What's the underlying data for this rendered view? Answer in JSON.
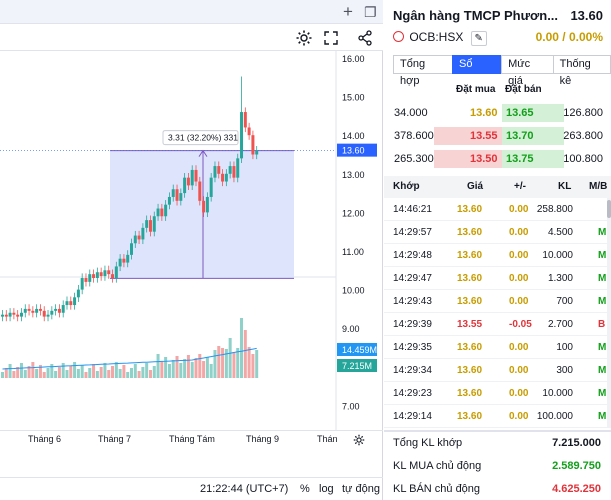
{
  "chart": {
    "price_axis": [
      "16.00",
      "15.00",
      "14.00",
      "13.00",
      "12.00",
      "11.00",
      "10.00",
      "9.00",
      "8.00",
      "7.00"
    ],
    "last_price_tag": "13.60",
    "vol_tag_1": "14.459M",
    "vol_tag_2": "7.215M",
    "measure_label": "3.31 (32.20%) 331",
    "time_labels": [
      "Tháng 6",
      "Tháng 7",
      "Tháng Tám",
      "Tháng 9",
      "Thán"
    ],
    "footer_time": "21:22:44 (UTC+7)",
    "footer_percent": "%",
    "footer_log": "log",
    "footer_auto": "tự động",
    "colors": {
      "up": "#26a69a",
      "down": "#ef5350",
      "range_fill": "#dde4fb",
      "range_border": "#7e57c2",
      "tag": "#2962ff"
    }
  },
  "quote": {
    "name": "Ngân hàng TMCP Phươn...",
    "price": "13.60",
    "symbol": "OCB:HSX",
    "change": "0.00 / 0.00%",
    "tabs": [
      "Tổng hợp",
      "Sổ lệnh",
      "Mức giá",
      "Thống kê"
    ],
    "book_headers": {
      "bid": "Đặt mua",
      "ask": "Đặt bán"
    },
    "book": [
      {
        "bid_vol": "34.000",
        "bid": "13.60",
        "ask": "13.65",
        "ask_vol": "126.800"
      },
      {
        "bid_vol": "378.600",
        "bid": "13.55",
        "ask": "13.70",
        "ask_vol": "263.800"
      },
      {
        "bid_vol": "265.300",
        "bid": "13.50",
        "ask": "13.75",
        "ask_vol": "100.800"
      }
    ],
    "matched_headers": {
      "time": "Khớp",
      "price": "Giá",
      "change": "+/-",
      "vol": "KL",
      "side": "M/B"
    },
    "matched": [
      {
        "time": "14:46:21",
        "price": "13.60",
        "change": "0.00",
        "vol": "258.800",
        "side": ""
      },
      {
        "time": "14:29:57",
        "price": "13.60",
        "change": "0.00",
        "vol": "4.500",
        "side": "M"
      },
      {
        "time": "14:29:48",
        "price": "13.60",
        "change": "0.00",
        "vol": "10.000",
        "side": "M"
      },
      {
        "time": "14:29:47",
        "price": "13.60",
        "change": "0.00",
        "vol": "1.300",
        "side": "M"
      },
      {
        "time": "14:29:43",
        "price": "13.60",
        "change": "0.00",
        "vol": "700",
        "side": "M"
      },
      {
        "time": "14:29:39",
        "price": "13.55",
        "change": "-0.05",
        "vol": "2.700",
        "side": "B"
      },
      {
        "time": "14:29:35",
        "price": "13.60",
        "change": "0.00",
        "vol": "100",
        "side": "M"
      },
      {
        "time": "14:29:34",
        "price": "13.60",
        "change": "0.00",
        "vol": "300",
        "side": "M"
      },
      {
        "time": "14:29:23",
        "price": "13.60",
        "change": "0.00",
        "vol": "10.000",
        "side": "M"
      },
      {
        "time": "14:29:14",
        "price": "13.60",
        "change": "0.00",
        "vol": "100.000",
        "side": "M"
      }
    ],
    "summary": [
      {
        "label": "Tổng KL khớp",
        "value": "7.215.000",
        "color": "#131722"
      },
      {
        "label": "KL MUA chủ động",
        "value": "2.589.750",
        "color": "#12a01a"
      },
      {
        "label": "KL BÁN chủ động",
        "value": "4.625.250",
        "color": "#e0333a"
      }
    ]
  }
}
